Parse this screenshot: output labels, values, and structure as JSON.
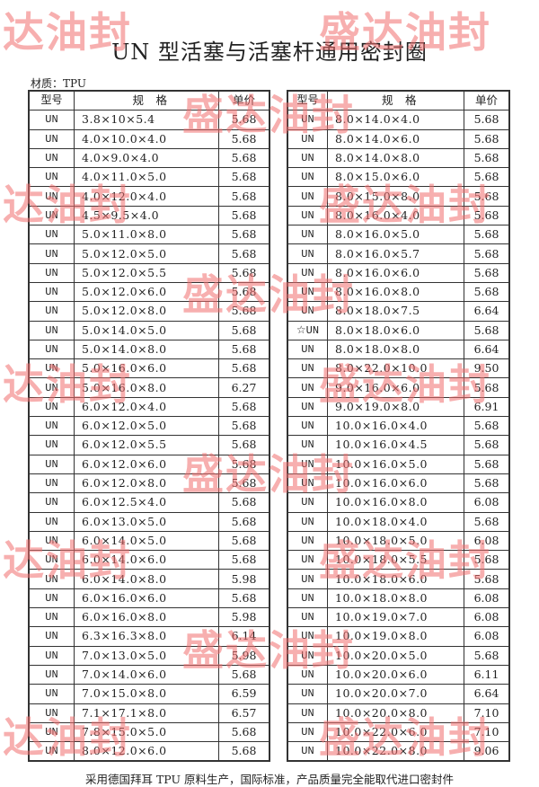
{
  "title": "UN 型活塞与活塞杆通用密封圈",
  "material": "材质：TPU",
  "headers": [
    "型号",
    "规　格",
    "单价"
  ],
  "left_rows": [
    [
      "UN",
      "3.8×10×5.4",
      "5.68"
    ],
    [
      "UN",
      "4.0×10.0×4.0",
      "5.68"
    ],
    [
      "UN",
      "4.0×9.0×4.0",
      "5.68"
    ],
    [
      "UN",
      "4.0×11.0×5.0",
      "5.68"
    ],
    [
      "UN",
      "4.0×12.0×4.0",
      "5.68"
    ],
    [
      "UN",
      "4.5×9.5×4.0",
      "5.68"
    ],
    [
      "UN",
      "5.0×11.0×8.0",
      "5.68"
    ],
    [
      "UN",
      "5.0×12.0×5.0",
      "5.68"
    ],
    [
      "UN",
      "5.0×12.0×5.5",
      "5.68"
    ],
    [
      "UN",
      "5.0×12.0×6.0",
      "5.68"
    ],
    [
      "UN",
      "5.0×12.0×8.0",
      "5.68"
    ],
    [
      "UN",
      "5.0×14.0×5.0",
      "5.68"
    ],
    [
      "UN",
      "5.0×14.0×8.0",
      "5.68"
    ],
    [
      "UN",
      "5.0×16.0×6.0",
      "5.68"
    ],
    [
      "UN",
      "5.0×16.0×8.0",
      "6.27"
    ],
    [
      "UN",
      "6.0×12.0×4.0",
      "5.68"
    ],
    [
      "UN",
      "6.0×12.0×5.0",
      "5.68"
    ],
    [
      "UN",
      "6.0×12.0×5.5",
      "5.68"
    ],
    [
      "UN",
      "6.0×12.0×6.0",
      "5.68"
    ],
    [
      "UN",
      "6.0×12.0×8.0",
      "5.68"
    ],
    [
      "UN",
      "6.0×12.5×4.0",
      "5.68"
    ],
    [
      "UN",
      "6.0×13.0×5.0",
      "5.68"
    ],
    [
      "UN",
      "6.0×14.0×5.0",
      "5.68"
    ],
    [
      "UN",
      "6.0×14.0×6.0",
      "5.68"
    ],
    [
      "UN",
      "6.0×14.0×8.0",
      "5.98"
    ],
    [
      "UN",
      "6.0×16.0×6.0",
      "5.68"
    ],
    [
      "UN",
      "6.0×16.0×8.0",
      "5.98"
    ],
    [
      "UN",
      "6.3×16.3×8.0",
      "6.14"
    ],
    [
      "UN",
      "7.0×13.0×5.0",
      "5.98"
    ],
    [
      "UN",
      "7.0×14.0×6.0",
      "5.68"
    ],
    [
      "UN",
      "7.0×15.0×8.0",
      "6.59"
    ],
    [
      "UN",
      "7.1×17.1×8.0",
      "6.57"
    ],
    [
      "UN",
      "7.8×15.0×5.0",
      "5.68"
    ],
    [
      "UN",
      "8.0×12.0×6.0",
      "5.68"
    ]
  ],
  "right_rows": [
    [
      "UN",
      "8.0×14.0×4.0",
      "5.68"
    ],
    [
      "UN",
      "8.0×14.0×6.0",
      "5.68"
    ],
    [
      "UN",
      "8.0×14.0×8.0",
      "5.68"
    ],
    [
      "UN",
      "8.0×15.0×6.0",
      "5.68"
    ],
    [
      "UN",
      "8.0×15.0×8.0",
      "5.68"
    ],
    [
      "UN",
      "8.0×16.0×4.0",
      "5.68"
    ],
    [
      "UN",
      "8.0×16.0×5.0",
      "5.68"
    ],
    [
      "UN",
      "8.0×16.0×5.7",
      "5.68"
    ],
    [
      "UN",
      "8.0×16.0×6.0",
      "5.68"
    ],
    [
      "UN",
      "8.0×16.0×8.0",
      "5.68"
    ],
    [
      "UN",
      "8.0×18.0×7.5",
      "6.64"
    ],
    [
      "☆UN",
      "8.0×18.0×6.0",
      "5.68"
    ],
    [
      "UN",
      "8.0×18.0×8.0",
      "6.64"
    ],
    [
      "UN",
      "8.0×22.0×10.0",
      "9.50"
    ],
    [
      "UN",
      "9.0×16.0×6.0",
      "5.68"
    ],
    [
      "UN",
      "9.0×19.0×8.0",
      "6.91"
    ],
    [
      "UN",
      "10.0×16.0×4.0",
      "5.68"
    ],
    [
      "UN",
      "10.0×16.0×4.5",
      "5.68"
    ],
    [
      "UN",
      "10.0×16.0×5.0",
      "5.68"
    ],
    [
      "UN",
      "10.0×16.0×6.0",
      "5.68"
    ],
    [
      "UN",
      "10.0×16.0×8.0",
      "6.08"
    ],
    [
      "UN",
      "10.0×18.0×4.0",
      "5.68"
    ],
    [
      "UN",
      "10.0×18.0×5.0",
      "6.08"
    ],
    [
      "UN",
      "10.0×18.0×5.5",
      "5.68"
    ],
    [
      "UN",
      "10.0×18.0×6.0",
      "5.68"
    ],
    [
      "UN",
      "10.0×18.0×8.0",
      "6.08"
    ],
    [
      "UN",
      "10.0×19.0×7.0",
      "6.08"
    ],
    [
      "UN",
      "10.0×19.0×8.0",
      "6.08"
    ],
    [
      "UN",
      "10.0×20.0×5.0",
      "5.68"
    ],
    [
      "UN",
      "10.0×20.0×6.0",
      "6.11"
    ],
    [
      "UN",
      "10.0×20.0×7.0",
      "6.64"
    ],
    [
      "UN",
      "10.0×20.0×8.0",
      "7.10"
    ],
    [
      "UN",
      "10.0×22.0×6.0",
      "7.10"
    ],
    [
      "UN",
      "10.0×22.0×8.0",
      "9.06"
    ]
  ],
  "footer": "采用德国拜耳 TPU 原料生产，国际标准，产品质量完全能取代进口密封件",
  "watermark": {
    "text": "盛达油封",
    "color": "#f06e6e"
  }
}
